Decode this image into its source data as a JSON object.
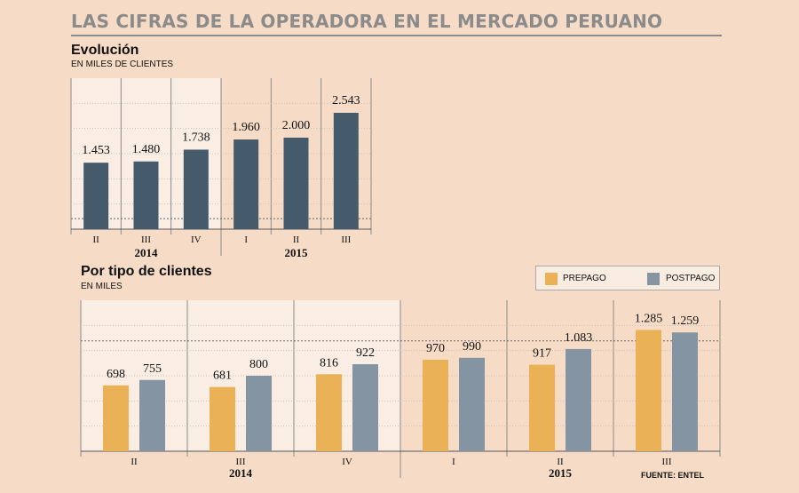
{
  "title": "LAS CIFRAS DE LA OPERADORA EN EL MERCADO PERUANO",
  "source": "FUENTE: ENTEL",
  "colors": {
    "background": "#f6dcc6",
    "panel_light": "#faeee4",
    "evolucion_bar": "#455a6b",
    "prepago": "#ebb156",
    "postpago": "#8494a3",
    "title_gray": "#8b8b8b"
  },
  "chart_data": [
    {
      "type": "bar",
      "title": "Evolución",
      "subtitle": "EN MILES DE CLIENTES",
      "categories": [
        "II",
        "III",
        "IV",
        "I",
        "II",
        "III"
      ],
      "year_groups": [
        {
          "label": "2014",
          "count": 3
        },
        {
          "label": "2015",
          "count": 3
        }
      ],
      "values": [
        1453,
        1480,
        1738,
        1960,
        2000,
        2543
      ],
      "value_labels": [
        "1.453",
        "1.480",
        "1.738",
        "1.960",
        "2.000",
        "2.543"
      ],
      "ylim": [
        0,
        3300
      ],
      "reference_line": 230
    },
    {
      "type": "bar",
      "title": "Por tipo de clientes",
      "subtitle": "EN MILES",
      "categories": [
        "II",
        "III",
        "IV",
        "I",
        "II",
        "III"
      ],
      "year_groups": [
        {
          "label": "2014",
          "count": 3
        },
        {
          "label": "2015",
          "count": 3
        }
      ],
      "series": [
        {
          "name": "PREPAGO",
          "values": [
            698,
            681,
            816,
            970,
            917,
            1285
          ],
          "value_labels": [
            "698",
            "681",
            "816",
            "970",
            "917",
            "1.285"
          ]
        },
        {
          "name": "POSTPAGO",
          "values": [
            755,
            800,
            922,
            990,
            1083,
            1259
          ],
          "value_labels": [
            "755",
            "800",
            "922",
            "990",
            "1.083",
            "1.259"
          ]
        }
      ],
      "ylim": [
        0,
        1600
      ],
      "reference_line": 1170
    }
  ]
}
